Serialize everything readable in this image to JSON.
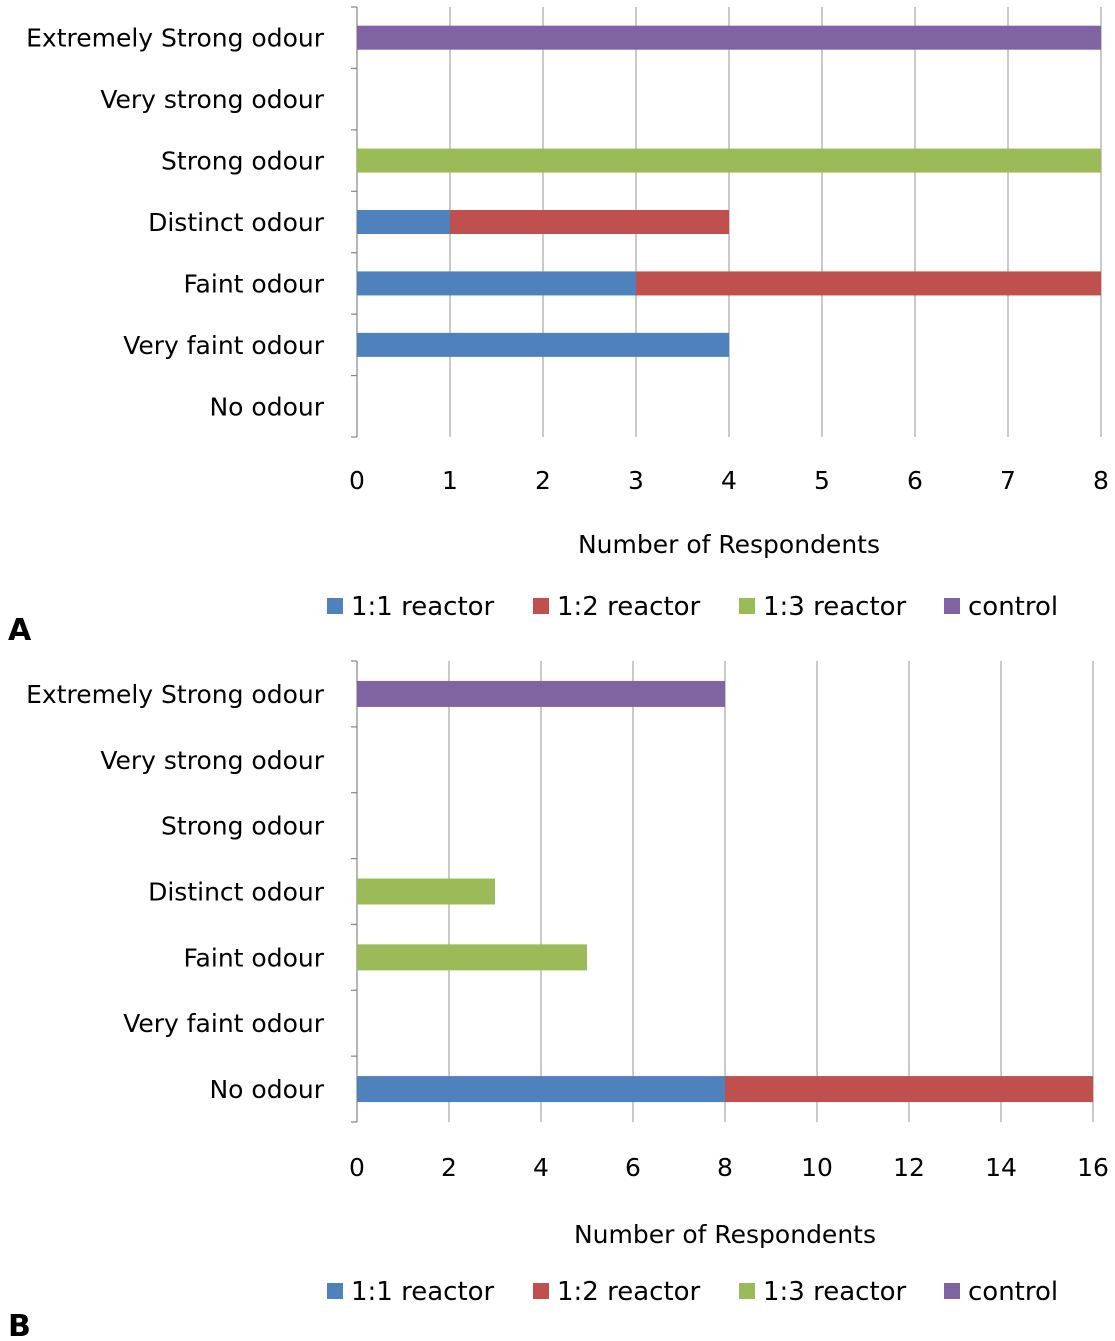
{
  "colors": {
    "1:1 reactor": "#4f81bd",
    "1:2 reactor": "#c0504d",
    "1:3 reactor": "#9bbb59",
    "control": "#8064a2",
    "grid": "#a6a6a6",
    "axis": "#868686"
  },
  "chart_data": [
    {
      "type": "bar",
      "orientation": "horizontal",
      "stacked": true,
      "panel_label": "A",
      "categories": [
        "Extremely Strong odour",
        "Very strong odour",
        "Strong odour",
        "Distinct odour",
        "Faint odour",
        "Very faint odour",
        "No odour"
      ],
      "series": [
        {
          "name": "1:1 reactor",
          "values": [
            0,
            0,
            0,
            1,
            3,
            4,
            0
          ]
        },
        {
          "name": "1:2 reactor",
          "values": [
            0,
            0,
            0,
            3,
            5,
            0,
            0
          ]
        },
        {
          "name": "1:3 reactor",
          "values": [
            0,
            0,
            8,
            0,
            0,
            0,
            0
          ]
        },
        {
          "name": "control",
          "values": [
            8,
            0,
            0,
            0,
            0,
            0,
            0
          ]
        }
      ],
      "xlabel": "Number of Respondents",
      "xlim": [
        0,
        8
      ],
      "xticks": [
        "0",
        "1",
        "2",
        "3",
        "4",
        "5",
        "6",
        "7",
        "8"
      ],
      "grid": true,
      "legend": "bottom"
    },
    {
      "type": "bar",
      "orientation": "horizontal",
      "stacked": true,
      "panel_label": "B",
      "categories": [
        "Extremely Strong odour",
        "Very strong odour",
        "Strong odour",
        "Distinct odour",
        "Faint odour",
        "Very faint odour",
        "No odour"
      ],
      "series": [
        {
          "name": "1:1 reactor",
          "values": [
            0,
            0,
            0,
            0,
            0,
            0,
            8
          ]
        },
        {
          "name": "1:2 reactor",
          "values": [
            0,
            0,
            0,
            0,
            0,
            0,
            8
          ]
        },
        {
          "name": "1:3 reactor",
          "values": [
            0,
            0,
            0,
            3,
            5,
            0,
            0
          ]
        },
        {
          "name": "control",
          "values": [
            8,
            0,
            0,
            0,
            0,
            0,
            0
          ]
        }
      ],
      "xlabel": "Number of Respondents",
      "xlim": [
        0,
        16
      ],
      "xticks": [
        "0",
        "2",
        "4",
        "6",
        "8",
        "10",
        "12",
        "14",
        "16"
      ],
      "grid": true,
      "legend": "bottom"
    }
  ]
}
